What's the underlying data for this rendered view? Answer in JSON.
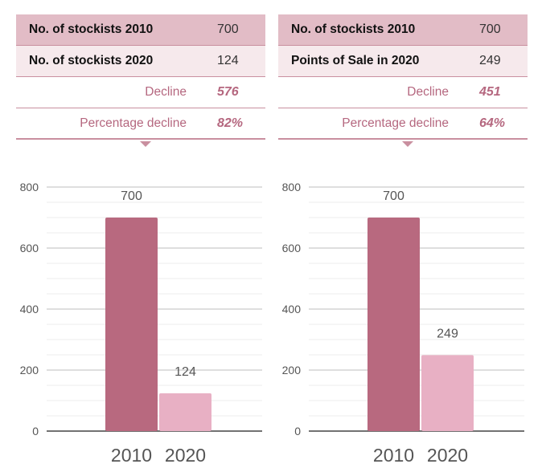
{
  "colors": {
    "bar_2010": "#b8697f",
    "bar_2020": "#e8b0c4",
    "header_bg": "#e2bcc6",
    "row_bg": "#f6e9ec",
    "accent_text": "#b5677f"
  },
  "panels": [
    {
      "table": [
        {
          "label": "No. of stockists 2010",
          "value": "700"
        },
        {
          "label": "No. of stockists 2020",
          "value": "124"
        },
        {
          "label": "Decline",
          "value": "576"
        },
        {
          "label": "Percentage decline",
          "value": "82%"
        }
      ]
    },
    {
      "table": [
        {
          "label": "No. of stockists 2010",
          "value": "700"
        },
        {
          "label": "Points of Sale in 2020",
          "value": "249"
        },
        {
          "label": "Decline",
          "value": "451"
        },
        {
          "label": "Percentage decline",
          "value": "64%"
        }
      ]
    }
  ],
  "chart_data": [
    {
      "type": "bar",
      "categories": [
        "2010",
        "2020"
      ],
      "values": [
        700,
        124
      ],
      "data_labels": [
        "700",
        "124"
      ],
      "ylim": [
        0,
        800
      ],
      "yticks": [
        0,
        200,
        400,
        600,
        800
      ],
      "grid": true
    },
    {
      "type": "bar",
      "categories": [
        "2010",
        "2020"
      ],
      "values": [
        700,
        249
      ],
      "data_labels": [
        "700",
        "249"
      ],
      "ylim": [
        0,
        800
      ],
      "yticks": [
        0,
        200,
        400,
        600,
        800
      ],
      "grid": true
    }
  ]
}
